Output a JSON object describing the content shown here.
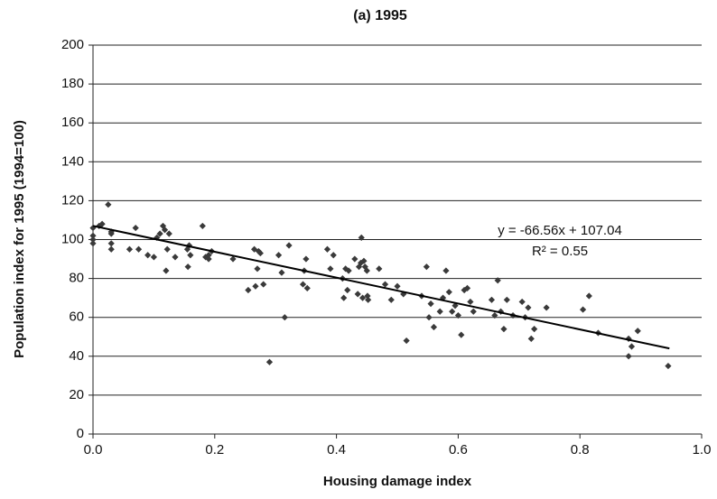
{
  "chart_data": {
    "type": "scatter",
    "title": "(a) 1995",
    "x_label": "Housing damage index",
    "y_label": "Population index for 1995 (1994=100)",
    "xlim": [
      0,
      1
    ],
    "ylim": [
      0,
      200
    ],
    "xticks": [
      {
        "value": 0,
        "label": "0.0"
      },
      0.2,
      0.4,
      0.6,
      0.8,
      {
        "value": 1,
        "label": "1.0"
      }
    ],
    "yticks": [
      0,
      20,
      40,
      60,
      80,
      100,
      120,
      140,
      160,
      180,
      200
    ],
    "grid": true,
    "color": "#3a3a3a",
    "series": [
      {
        "name": "1995",
        "color": "#3a3a3a",
        "x": [
          0.0,
          0.0,
          0.0,
          0.0,
          0.01,
          0.015,
          0.025,
          0.03,
          0.03,
          0.03,
          0.03,
          0.06,
          0.07,
          0.075,
          0.09,
          0.1,
          0.105,
          0.11,
          0.115,
          0.118,
          0.12,
          0.122,
          0.125,
          0.135,
          0.155,
          0.156,
          0.158,
          0.16,
          0.18,
          0.185,
          0.19,
          0.19,
          0.195,
          0.23,
          0.255,
          0.265,
          0.267,
          0.27,
          0.272,
          0.275,
          0.28,
          0.29,
          0.305,
          0.31,
          0.315,
          0.322,
          0.345,
          0.347,
          0.35,
          0.352,
          0.385,
          0.39,
          0.395,
          0.41,
          0.412,
          0.415,
          0.418,
          0.42,
          0.43,
          0.435,
          0.437,
          0.44,
          0.441,
          0.443,
          0.445,
          0.447,
          0.45,
          0.451,
          0.452,
          0.47,
          0.48,
          0.49,
          0.5,
          0.51,
          0.515,
          0.54,
          0.548,
          0.552,
          0.555,
          0.56,
          0.57,
          0.575,
          0.58,
          0.585,
          0.59,
          0.595,
          0.6,
          0.605,
          0.61,
          0.615,
          0.62,
          0.625,
          0.655,
          0.66,
          0.665,
          0.67,
          0.675,
          0.68,
          0.69,
          0.705,
          0.71,
          0.715,
          0.72,
          0.725,
          0.745,
          0.805,
          0.815,
          0.83,
          0.88,
          0.88,
          0.885,
          0.895,
          0.945
        ],
        "values": [
          106,
          102,
          98,
          100,
          107,
          108,
          118,
          104,
          98,
          95,
          103,
          95,
          106,
          95,
          92,
          91,
          101,
          103,
          107,
          105,
          84,
          95,
          103,
          91,
          95,
          86,
          97,
          92,
          107,
          91,
          92,
          90,
          94,
          90,
          74,
          95,
          76,
          85,
          94,
          93,
          77,
          37,
          92,
          83,
          60,
          97,
          77,
          84,
          90,
          75,
          95,
          85,
          92,
          80,
          70,
          85,
          74,
          84,
          90,
          72,
          86,
          88,
          101,
          70,
          89,
          86,
          84,
          71,
          69,
          85,
          77,
          69,
          76,
          72,
          48,
          71,
          86,
          60,
          67,
          55,
          63,
          70,
          84,
          73,
          63,
          66,
          61,
          51,
          74,
          75,
          68,
          63,
          69,
          61,
          79,
          63,
          54,
          69,
          61,
          68,
          60,
          65,
          49,
          54,
          65,
          64,
          71,
          52,
          40,
          49,
          45,
          53,
          35
        ]
      }
    ],
    "trendline": {
      "equation": "y = -66.56x + 107.04",
      "r_squared": "R² = 0.55",
      "slope": -66.56,
      "intercept": 107.04,
      "x": [
        0,
        0.947
      ]
    }
  }
}
